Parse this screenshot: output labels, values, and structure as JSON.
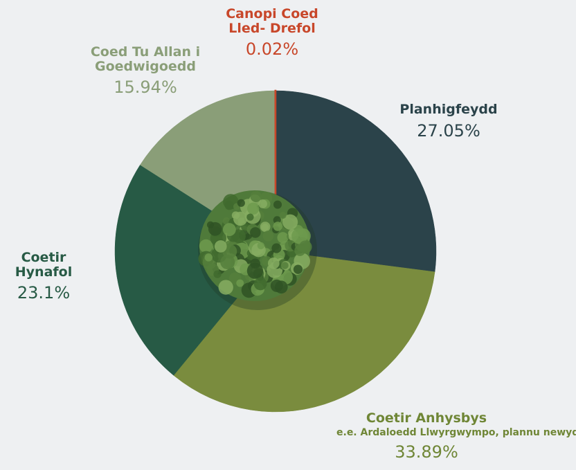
{
  "chart_data": {
    "type": "pie",
    "categories": [
      "Planhigfeydd",
      "Coetir Anhysbys",
      "Coetir Hynafol",
      "Coed Tu Allan i Goedwigoedd",
      "Canopi Coed Lled- Drefol"
    ],
    "values": [
      27.05,
      33.89,
      23.1,
      15.94,
      0.02
    ],
    "value_labels": [
      "27.05%",
      "33.89%",
      "23.1%",
      "15.94%",
      "0.02%"
    ],
    "colors": [
      "#2b434a",
      "#7a8c3e",
      "#275a45",
      "#8a9e78",
      "#c8472a"
    ],
    "annotations": [
      "e.e. Ardaloedd Llwyrgwympo, plannu newydd"
    ]
  }
}
